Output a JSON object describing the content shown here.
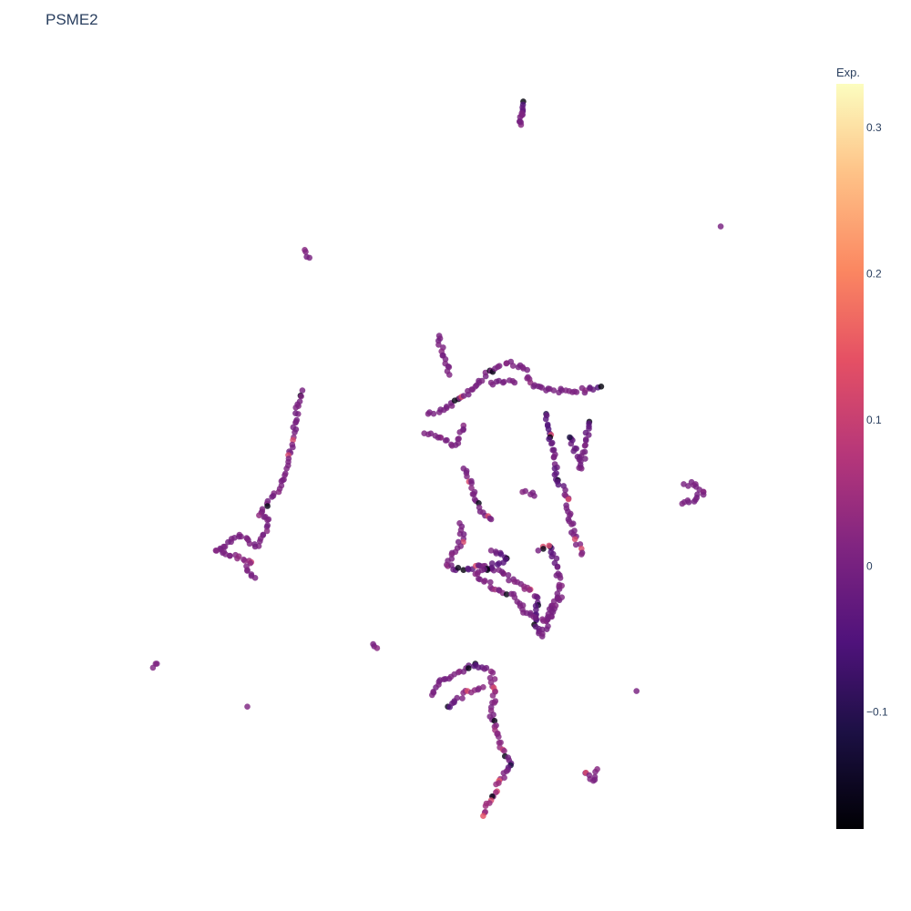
{
  "chart_data": {
    "type": "scatter",
    "title": "PSME2",
    "xlabel": "",
    "ylabel": "",
    "axes_visible": false,
    "grid": false,
    "colorscale": "magma",
    "colorbar": {
      "title": "Exp.",
      "range": [
        -0.18,
        0.33
      ],
      "ticks": [
        {
          "value": 0.3,
          "label": "0.3"
        },
        {
          "value": 0.2,
          "label": "0.2"
        },
        {
          "value": 0.1,
          "label": "0.1"
        },
        {
          "value": 0,
          "label": "0"
        },
        {
          "value": -0.1,
          "label": "−0.1"
        }
      ],
      "placement": "right"
    },
    "note": "Point coordinates are unlabeled embedding values; clusters approximated as polylines of cells with expression values.",
    "clusters": [
      {
        "points": [
          [
            5.96,
            9.9
          ],
          [
            5.93,
            9.6
          ],
          [
            5.94,
            9.75
          ]
        ],
        "values": [
          -0.17,
          0.02,
          0.01
        ]
      },
      {
        "points": [
          [
            3.18,
            8.0
          ],
          [
            3.24,
            7.9
          ]
        ],
        "values": [
          0.02,
          0.0
        ]
      },
      {
        "points": [
          [
            8.47,
            8.3
          ]
        ],
        "values": [
          0.0
        ]
      },
      {
        "points": [
          [
            4.89,
            6.9
          ],
          [
            4.92,
            6.7
          ],
          [
            4.97,
            6.6
          ],
          [
            5.02,
            6.4
          ]
        ],
        "values": [
          0.0,
          0.02,
          0.0,
          0.01
        ]
      },
      {
        "points": [
          [
            3.15,
            6.2
          ],
          [
            3.1,
            6.0
          ],
          [
            3.07,
            5.8
          ],
          [
            3.04,
            5.6
          ],
          [
            3.0,
            5.4
          ],
          [
            2.95,
            5.2
          ],
          [
            2.9,
            5.05
          ],
          [
            2.85,
            4.9
          ],
          [
            2.78,
            4.85
          ],
          [
            2.7,
            4.75
          ],
          [
            2.6,
            4.6
          ],
          [
            2.72,
            4.55
          ],
          [
            2.7,
            4.4
          ],
          [
            2.62,
            4.3
          ],
          [
            2.55,
            4.2
          ],
          [
            2.45,
            4.3
          ],
          [
            2.35,
            4.35
          ],
          [
            2.25,
            4.3
          ],
          [
            2.15,
            4.2
          ],
          [
            2.05,
            4.15
          ],
          [
            2.5,
            4.0
          ],
          [
            2.45,
            3.9
          ],
          [
            2.55,
            3.8
          ]
        ],
        "values": [
          0.0,
          0.01,
          0.0,
          0.02,
          0.0,
          0.01,
          0.0,
          0.02,
          0.0,
          0.01,
          0.03,
          0.0,
          0.02,
          0.01,
          0.0,
          0.02,
          0.01,
          0.0,
          0.0,
          0.01,
          0.1,
          0.02,
          0.0
        ]
      },
      {
        "points": [
          [
            4.75,
            5.9
          ],
          [
            4.95,
            5.95
          ],
          [
            5.15,
            6.1
          ],
          [
            5.35,
            6.25
          ],
          [
            5.55,
            6.45
          ],
          [
            5.75,
            6.55
          ],
          [
            5.95,
            6.5
          ],
          [
            6.05,
            6.3
          ],
          [
            6.25,
            6.2
          ],
          [
            6.5,
            6.2
          ],
          [
            6.75,
            6.2
          ],
          [
            6.95,
            6.25
          ],
          [
            5.85,
            6.3
          ],
          [
            5.55,
            6.3
          ],
          [
            5.2,
            5.75
          ],
          [
            5.1,
            5.5
          ],
          [
            4.9,
            5.6
          ],
          [
            4.7,
            5.65
          ],
          [
            5.2,
            5.2
          ],
          [
            5.3,
            4.95
          ],
          [
            5.4,
            4.7
          ],
          [
            5.55,
            4.55
          ],
          [
            6.25,
            5.9
          ],
          [
            6.3,
            5.6
          ],
          [
            6.35,
            5.35
          ],
          [
            6.4,
            5.05
          ],
          [
            6.5,
            4.85
          ],
          [
            6.55,
            4.6
          ],
          [
            6.6,
            4.35
          ],
          [
            6.7,
            4.1
          ],
          [
            6.8,
            5.8
          ],
          [
            6.75,
            5.5
          ],
          [
            6.7,
            5.2
          ],
          [
            6.55,
            5.6
          ],
          [
            5.95,
            4.9
          ],
          [
            6.1,
            4.85
          ],
          [
            5.15,
            4.5
          ],
          [
            5.2,
            4.3
          ],
          [
            5.05,
            4.1
          ],
          [
            5.0,
            3.95
          ],
          [
            5.2,
            3.9
          ],
          [
            5.45,
            3.95
          ],
          [
            5.65,
            3.9
          ],
          [
            5.85,
            3.75
          ],
          [
            6.05,
            3.65
          ],
          [
            6.15,
            3.45
          ],
          [
            6.1,
            3.2
          ],
          [
            6.2,
            3.05
          ],
          [
            6.35,
            3.5
          ],
          [
            6.45,
            3.7
          ],
          [
            6.3,
            4.2
          ],
          [
            6.15,
            4.15
          ],
          [
            5.55,
            4.15
          ],
          [
            5.75,
            4.05
          ],
          [
            5.35,
            3.85
          ],
          [
            5.6,
            3.65
          ],
          [
            5.85,
            3.55
          ],
          [
            6.0,
            3.35
          ],
          [
            6.25,
            3.25
          ],
          [
            6.45,
            3.55
          ]
        ],
        "values": [
          0.01,
          0.0,
          0.02,
          0.0,
          0.01,
          0.02,
          0.0,
          0.03,
          0.0,
          0.01,
          0.02,
          -0.17,
          0.0,
          0.01,
          0.02,
          0.0,
          0.03,
          0.01,
          0.0,
          0.02,
          0.01,
          0.0,
          -0.1,
          -0.17,
          0.0,
          -0.15,
          0.02,
          0.0,
          0.01,
          0.02,
          -0.16,
          0.0,
          0.01,
          -0.12,
          0.02,
          0.0,
          0.01,
          0.0,
          0.02,
          0.03,
          -0.17,
          0.0,
          0.01,
          0.02,
          0.12,
          -0.14,
          -0.17,
          0.0,
          0.01,
          0.02,
          -0.1,
          0.0,
          0.01,
          -0.17,
          0.02,
          0.05,
          0.01,
          0.0,
          0.02,
          0.01
        ]
      },
      {
        "points": [
          [
            8.0,
            5.0
          ],
          [
            8.15,
            5.0
          ],
          [
            8.25,
            4.9
          ],
          [
            8.15,
            4.8
          ],
          [
            7.98,
            4.75
          ]
        ],
        "values": [
          0.0,
          0.01,
          0.02,
          0.0,
          0.01
        ]
      },
      {
        "points": [
          [
            1.3,
            2.7
          ],
          [
            1.25,
            2.65
          ]
        ],
        "values": [
          0.0,
          0.01
        ]
      },
      {
        "points": [
          [
            4.05,
            2.95
          ],
          [
            4.1,
            2.9
          ]
        ],
        "values": [
          0.0,
          0.02
        ]
      },
      {
        "points": [
          [
            2.45,
            2.15
          ]
        ],
        "values": [
          0.01
        ]
      },
      {
        "points": [
          [
            7.4,
            2.35
          ]
        ],
        "values": [
          0.0
        ]
      },
      {
        "points": [
          [
            4.8,
            2.3
          ],
          [
            4.95,
            2.5
          ],
          [
            5.15,
            2.6
          ],
          [
            5.35,
            2.7
          ],
          [
            5.55,
            2.6
          ],
          [
            5.6,
            2.35
          ],
          [
            5.55,
            2.1
          ],
          [
            5.6,
            1.85
          ],
          [
            5.7,
            1.6
          ],
          [
            5.8,
            1.4
          ],
          [
            5.65,
            1.2
          ],
          [
            5.55,
            0.95
          ],
          [
            5.45,
            0.75
          ],
          [
            5.0,
            2.15
          ],
          [
            5.25,
            2.35
          ],
          [
            5.45,
            2.4
          ]
        ],
        "values": [
          0.01,
          0.0,
          0.02,
          -0.15,
          0.03,
          0.12,
          0.02,
          0.05,
          0.1,
          -0.12,
          0.15,
          0.12,
          0.14,
          -0.15,
          0.12,
          0.02
        ]
      },
      {
        "points": [
          [
            6.75,
            1.3
          ],
          [
            6.85,
            1.2
          ],
          [
            6.9,
            1.35
          ]
        ],
        "values": [
          0.0,
          0.01,
          0.02
        ]
      }
    ]
  }
}
